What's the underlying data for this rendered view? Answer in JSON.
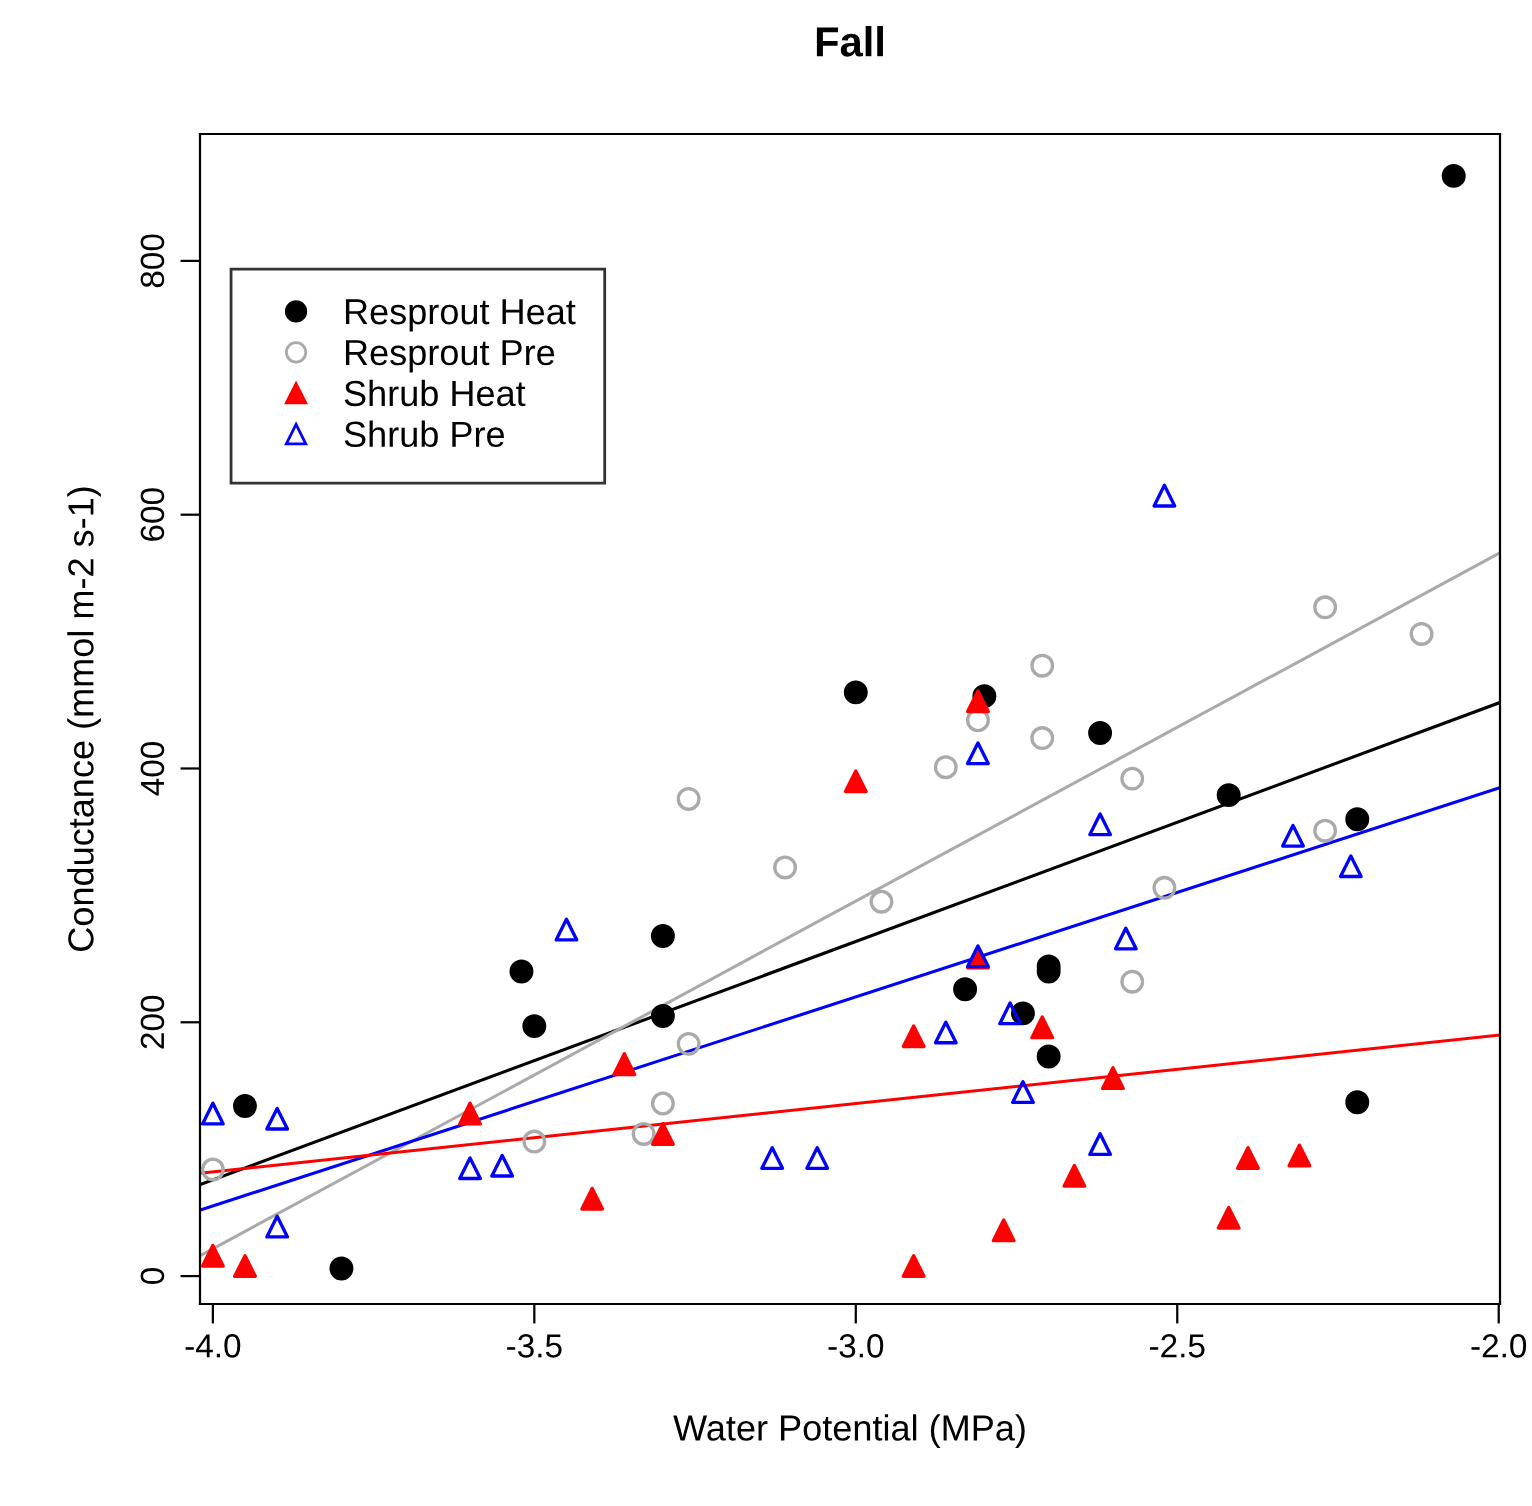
{
  "chart_data": {
    "type": "scatter",
    "title": "Fall",
    "xlabel": "Water Potential (MPa)",
    "ylabel": "Conductance (mmol m-2 s-1)",
    "xlim": [
      -4.02,
      -1.998
    ],
    "ylim": [
      -22,
      900
    ],
    "xticks": [
      {
        "value": -4.0,
        "label": "-4.0"
      },
      {
        "value": -3.5,
        "label": "-3.5"
      },
      {
        "value": -3.0,
        "label": "-3.0"
      },
      {
        "value": -2.5,
        "label": "-2.5"
      },
      {
        "value": -2.0,
        "label": "-2.0"
      }
    ],
    "yticks": [
      0,
      200,
      400,
      600,
      800
    ],
    "grid": false,
    "legend": "top left",
    "series": [
      {
        "name": "Resprout Heat",
        "color": "#000000",
        "marker": "circle",
        "x": [
          -3.95,
          -3.8,
          -3.52,
          -3.5,
          -3.3,
          -3.3,
          -3.0,
          -2.83,
          -2.8,
          -2.74,
          -2.7,
          -2.7,
          -2.7,
          -2.62,
          -2.42,
          -2.22,
          -2.22,
          -2.07
        ],
        "values": [
          134,
          6,
          240,
          197,
          268,
          205,
          460,
          226,
          457,
          207,
          244,
          240,
          173,
          428,
          379,
          360,
          137,
          867
        ]
      },
      {
        "name": "Resprout Pre",
        "color": "#aaaaaa",
        "marker": "circle",
        "x": [
          -4.0,
          -3.5,
          -3.33,
          -3.3,
          -3.26,
          -3.26,
          -3.11,
          -2.96,
          -2.86,
          -2.81,
          -2.71,
          -2.71,
          -2.57,
          -2.52,
          -2.57,
          -2.27,
          -2.27,
          -2.12
        ],
        "values": [
          84,
          106,
          112,
          136,
          183,
          376,
          322,
          295,
          401,
          438,
          481,
          424,
          392,
          306,
          232,
          351,
          527,
          506
        ]
      },
      {
        "name": "Shrub Heat",
        "color": "#ff0000",
        "marker": "triangle",
        "x": [
          -4.0,
          -3.95,
          -3.6,
          -3.41,
          -3.36,
          -3.3,
          -3.0,
          -2.81,
          -2.91,
          -2.91,
          -2.81,
          -2.71,
          -2.77,
          -2.66,
          -2.6,
          -2.42,
          -2.39,
          -2.31
        ],
        "values": [
          16,
          8,
          128,
          61,
          167,
          112,
          390,
          453,
          189,
          8,
          251,
          196,
          36,
          79,
          156,
          46,
          93,
          95
        ]
      },
      {
        "name": "Shrub Pre",
        "color": "#0000ff",
        "marker": "triangle",
        "x": [
          -4.0,
          -3.9,
          -3.9,
          -3.6,
          -3.55,
          -3.45,
          -3.13,
          -3.06,
          -2.81,
          -2.81,
          -2.86,
          -2.76,
          -2.74,
          -2.62,
          -2.58,
          -2.62,
          -2.32,
          -2.23,
          -2.52
        ],
        "values": [
          128,
          124,
          39,
          85,
          87,
          273,
          93,
          93,
          412,
          252,
          192,
          207,
          145,
          356,
          266,
          104,
          347,
          323,
          615
        ]
      },
      {
        "type": "line",
        "color": "#000000",
        "x": [
          -4.02,
          -1.998
        ],
        "values": [
          72,
          452
        ]
      },
      {
        "type": "line",
        "color": "#aaaaaa",
        "x": [
          -4.02,
          -1.998
        ],
        "values": [
          16,
          570
        ]
      },
      {
        "type": "line",
        "color": "#0000ff",
        "x": [
          -4.02,
          -1.998
        ],
        "values": [
          52,
          385
        ]
      },
      {
        "type": "line",
        "color": "#ff0000",
        "x": [
          -4.02,
          -1.998
        ],
        "values": [
          81,
          190
        ]
      }
    ]
  }
}
